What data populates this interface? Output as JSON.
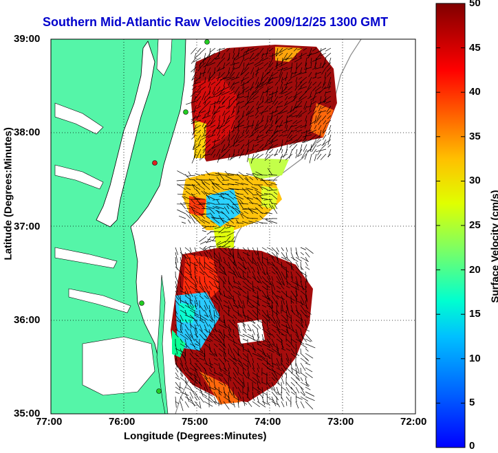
{
  "chart_data": {
    "type": "heatmap",
    "title": "Southern Mid-Atlantic Raw Velocities 2009/12/25 1300 GMT",
    "xlabel": "Longitude (Degrees:Minutes)",
    "ylabel": "Latitude (Degrees:Minutes)",
    "x_ticks": [
      "77:00",
      "76:00",
      "75:00",
      "74:00",
      "73:00",
      "72:00"
    ],
    "y_ticks": [
      "39:00",
      "38:00",
      "37:00",
      "36:00",
      "35:00"
    ],
    "xlim": [
      -77,
      -72
    ],
    "ylim": [
      35,
      39
    ],
    "grid": true,
    "colorbar": {
      "label": "Surface Velocity (cm/s)",
      "range": [
        0,
        50
      ],
      "ticks": [
        "50",
        "45",
        "40",
        "35",
        "30",
        "25",
        "20",
        "15",
        "10",
        "5",
        "0"
      ],
      "colormap": "jet"
    },
    "land_color": "#55f5a8",
    "water_color": "#ffffff",
    "station_color": "#22cc22",
    "station_highlight_color": "#dd2222"
  }
}
